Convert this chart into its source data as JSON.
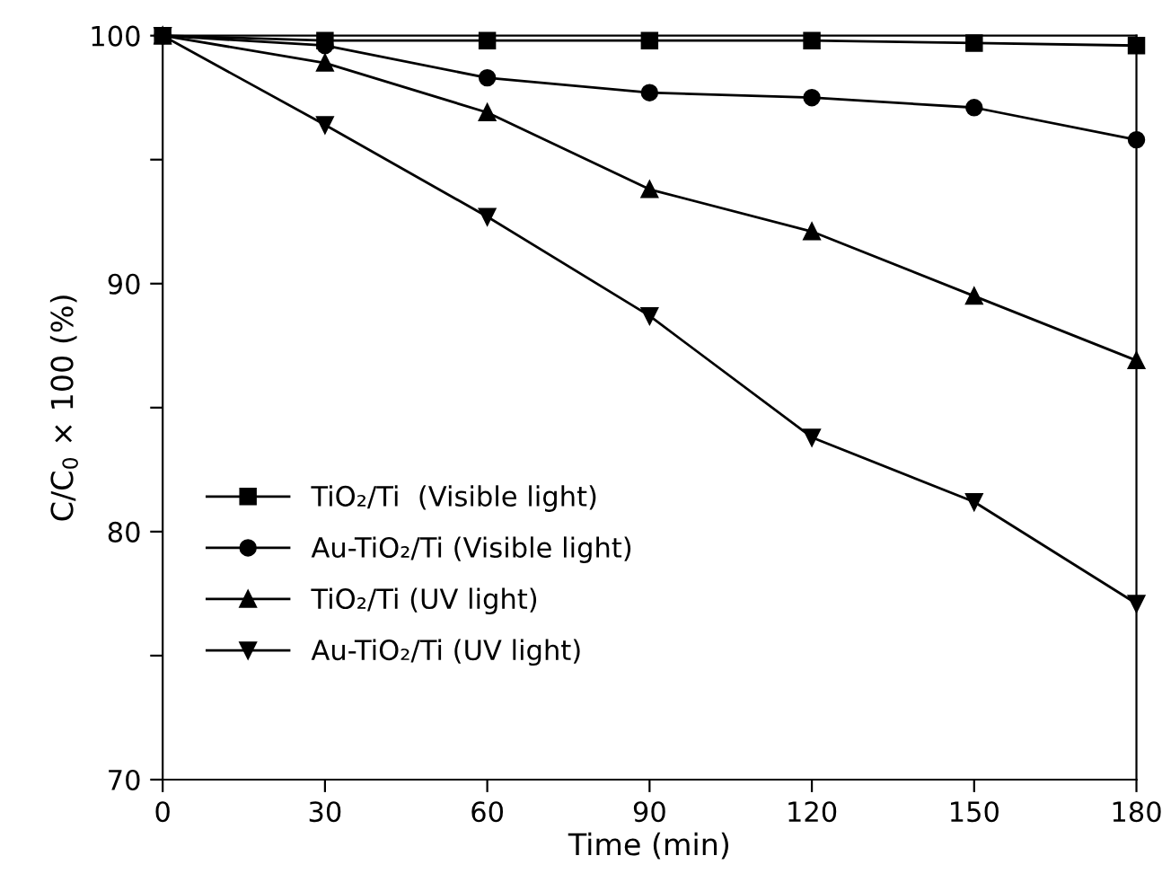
{
  "chart_data": {
    "type": "line",
    "xlabel": "Time (min)",
    "ylabel": "C/C$_{0}$ × 100 (%)",
    "x": [
      0,
      30,
      60,
      90,
      120,
      150,
      180
    ],
    "series": [
      {
        "name": "TiO₂/Ti  (Visible light)",
        "color": "#000000",
        "marker": "square",
        "values": [
          100,
          99.8,
          99.8,
          99.8,
          99.8,
          99.7,
          99.6
        ]
      },
      {
        "name": "Au-TiO₂/Ti (Visible light)",
        "color": "#000000",
        "marker": "circle",
        "values": [
          100,
          99.6,
          98.3,
          97.7,
          97.5,
          97.1,
          95.8
        ]
      },
      {
        "name": "TiO₂/Ti (UV light)",
        "color": "#000000",
        "marker": "triangle",
        "values": [
          100,
          98.9,
          96.9,
          93.8,
          92.1,
          89.5,
          86.9
        ]
      },
      {
        "name": "Au-TiO₂/Ti (UV light)",
        "color": "#000000",
        "marker": "triangle_down",
        "values": [
          100,
          96.4,
          92.7,
          88.7,
          83.8,
          81.2,
          77.1
        ]
      }
    ],
    "xlim": [
      0,
      180
    ],
    "ylim": [
      70,
      100
    ],
    "xticks": [
      0,
      30,
      60,
      90,
      120,
      150,
      180
    ],
    "yticks": [
      70,
      {
        "value": 75,
        "label": null
      },
      80,
      {
        "value": 85,
        "label": null
      },
      90,
      {
        "value": 95,
        "label": null
      },
      100
    ],
    "grid": false,
    "legend": "bottom left",
    "line_style": "solid"
  }
}
